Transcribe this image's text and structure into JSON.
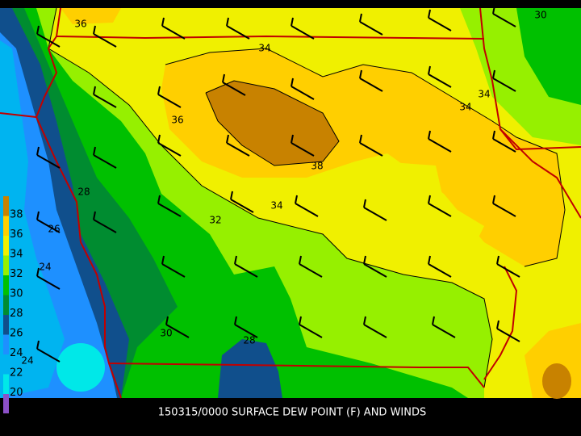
{
  "caption": "150315/0000 SURFACE DEW POINT (F) AND WINDS",
  "colorbar": {
    "labels": [
      "38",
      "36",
      "34",
      "32",
      "30",
      "28",
      "26",
      "24",
      "22",
      "20"
    ]
  },
  "contour_labels": [
    "36",
    "34",
    "34",
    "34",
    "36",
    "38",
    "34",
    "32",
    "28",
    "26",
    "24",
    "30",
    "28",
    "24",
    "30"
  ]
}
